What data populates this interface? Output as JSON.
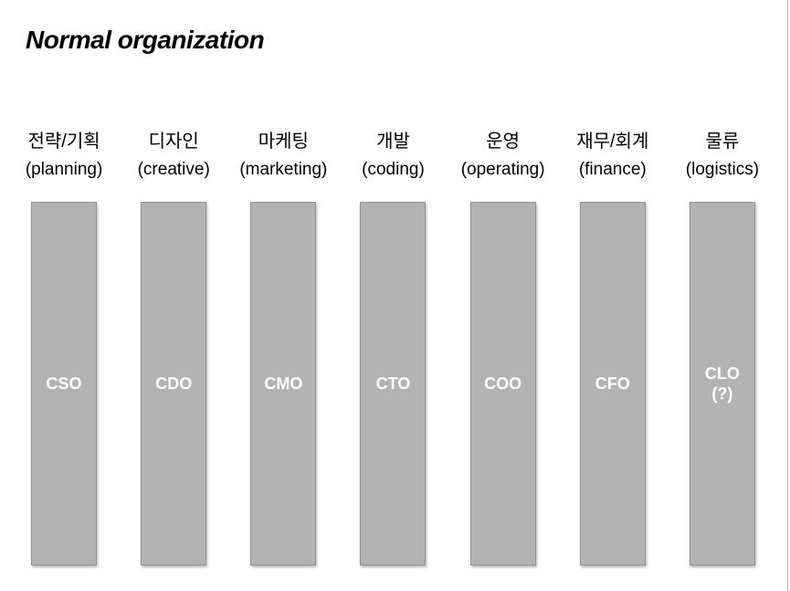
{
  "slide": {
    "title": "Normal organization"
  },
  "columns": [
    {
      "korean": "전략/기획",
      "english": "(planning)",
      "role": "CSO"
    },
    {
      "korean": "디자인",
      "english": "(creative)",
      "role": "CDO"
    },
    {
      "korean": "마케팅",
      "english": "(marketing)",
      "role": "CMO"
    },
    {
      "korean": "개발",
      "english": "(coding)",
      "role": "CTO"
    },
    {
      "korean": "운영",
      "english": "(operating)",
      "role": "COO"
    },
    {
      "korean": "재무/회계",
      "english": "(finance)",
      "role": "CFO"
    },
    {
      "korean": "물류",
      "english": "(logistics)",
      "role": "CLO\n(?)"
    }
  ],
  "colors": {
    "background": "#ffffff",
    "bar_fill": "#b3b3b3",
    "bar_border": "#919191",
    "bar_label": "#ffffff",
    "text": "#000000"
  }
}
